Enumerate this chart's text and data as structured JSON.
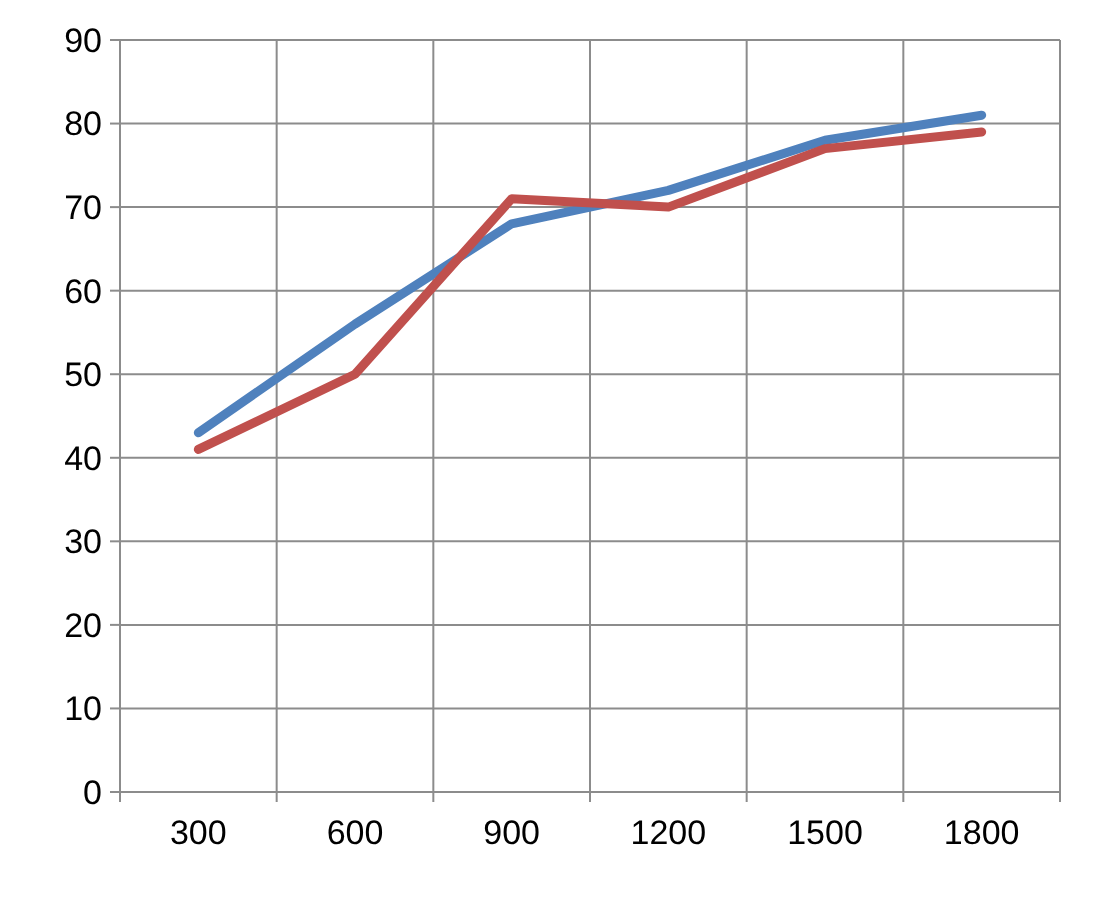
{
  "chart_data": {
    "type": "line",
    "categories": [
      "300",
      "600",
      "900",
      "1200",
      "1500",
      "1800"
    ],
    "series": [
      {
        "color": "#4f81bd",
        "values": [
          43,
          56,
          68,
          72,
          78,
          81
        ]
      },
      {
        "color": "#c0504d",
        "values": [
          41,
          50,
          71,
          70,
          77,
          79
        ]
      }
    ],
    "ylim": [
      0,
      90
    ],
    "yticks": [
      0,
      10,
      20,
      30,
      40,
      50,
      60,
      70,
      80,
      90
    ],
    "grid": true,
    "marker": "none",
    "line_style": "solid"
  }
}
